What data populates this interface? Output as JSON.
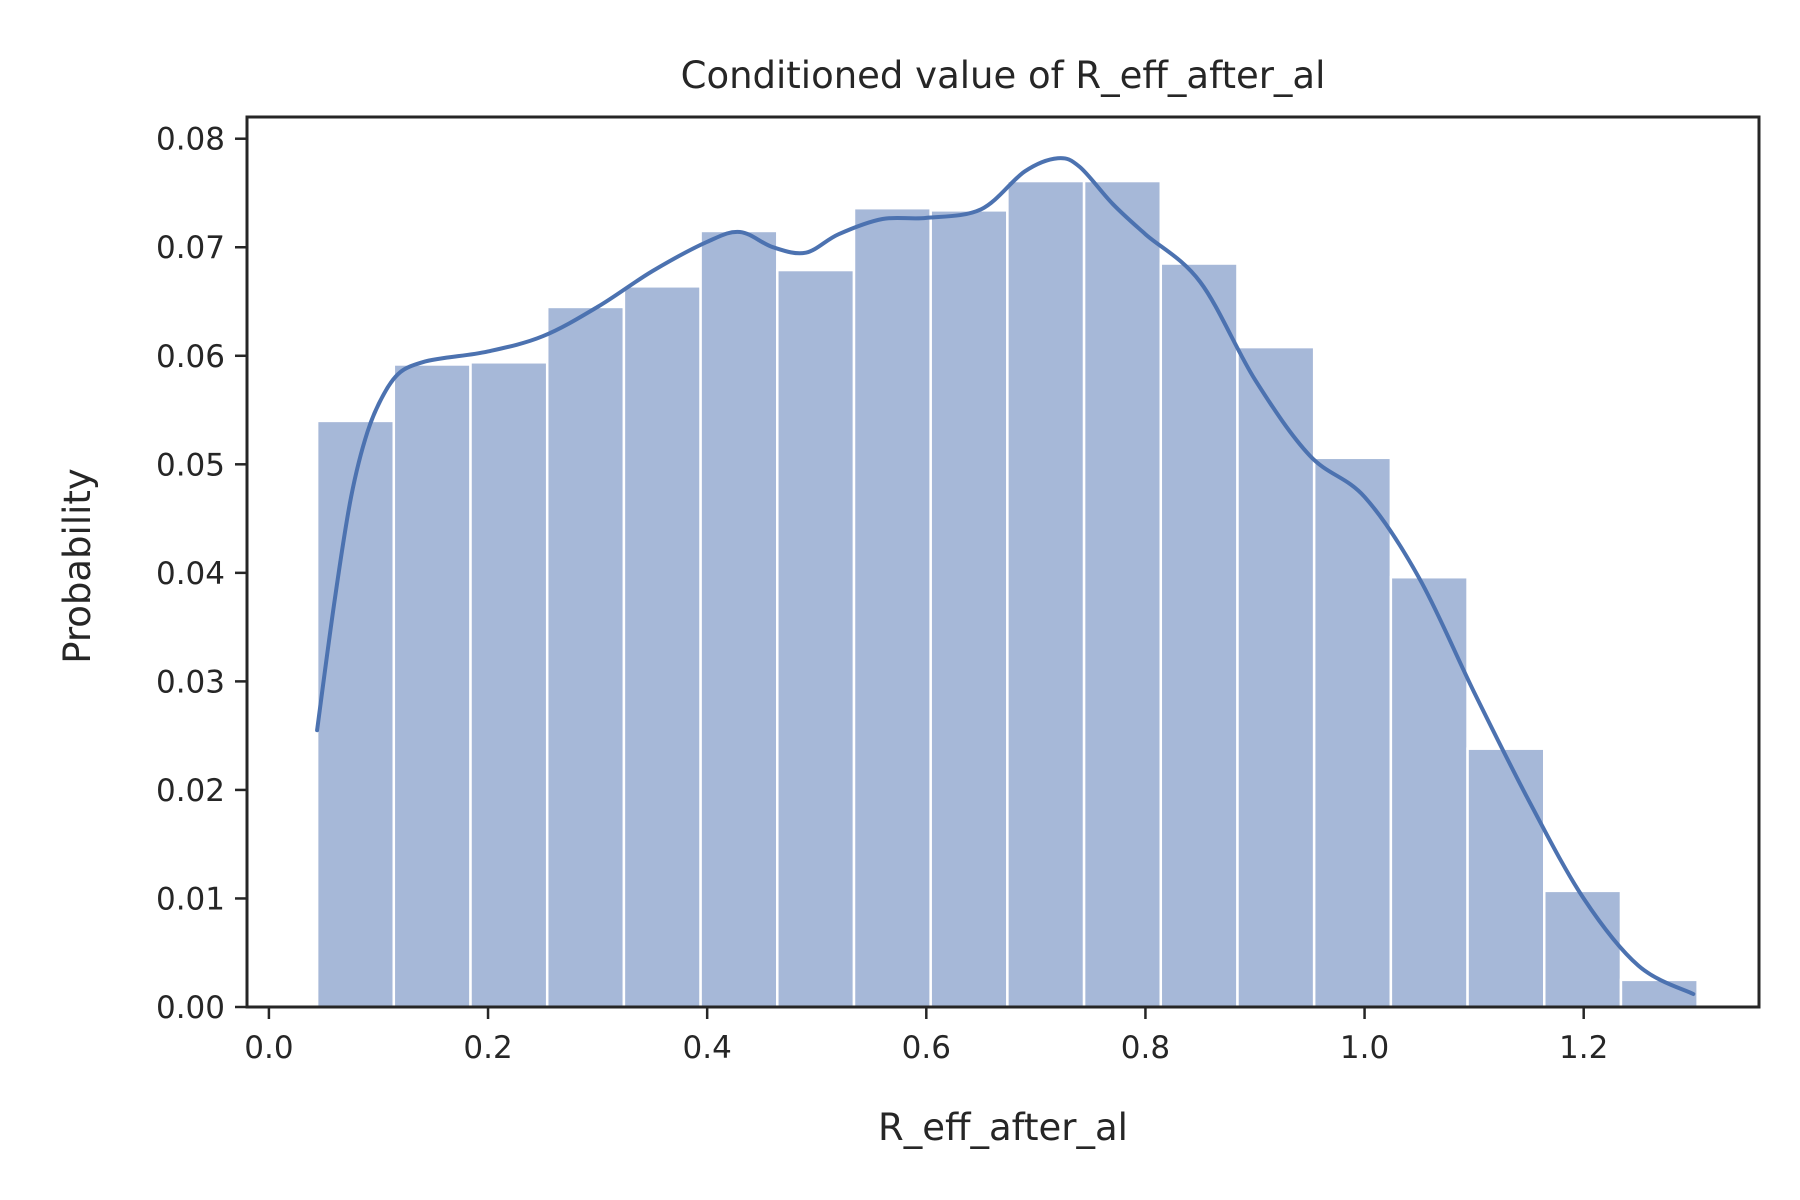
{
  "chart_data": {
    "type": "bar",
    "title": "Conditioned value of R_eff_after_al",
    "xlabel": "R_eff_after_al",
    "ylabel": "Probability",
    "xlim": [
      -0.02,
      1.36
    ],
    "ylim": [
      0.0,
      0.082
    ],
    "xticks": [
      0.0,
      0.2,
      0.4,
      0.6,
      0.8,
      1.0,
      1.2
    ],
    "xtick_labels": [
      "0.0",
      "0.2",
      "0.4",
      "0.6",
      "0.8",
      "1.0",
      "1.2"
    ],
    "yticks": [
      0.0,
      0.01,
      0.02,
      0.03,
      0.04,
      0.05,
      0.06,
      0.07,
      0.08
    ],
    "ytick_labels": [
      "0.00",
      "0.01",
      "0.02",
      "0.03",
      "0.04",
      "0.05",
      "0.06",
      "0.07",
      "0.08"
    ],
    "grid": false,
    "bar_color": "#a6b8d8",
    "kde_color": "#4c72b0",
    "bins": [
      {
        "x0": 0.044,
        "x1": 0.114,
        "value": 0.054
      },
      {
        "x0": 0.114,
        "x1": 0.184,
        "value": 0.0592
      },
      {
        "x0": 0.184,
        "x1": 0.254,
        "value": 0.0594
      },
      {
        "x0": 0.254,
        "x1": 0.324,
        "value": 0.0645
      },
      {
        "x0": 0.324,
        "x1": 0.394,
        "value": 0.0664
      },
      {
        "x0": 0.394,
        "x1": 0.464,
        "value": 0.0715
      },
      {
        "x0": 0.464,
        "x1": 0.534,
        "value": 0.0679
      },
      {
        "x0": 0.534,
        "x1": 0.604,
        "value": 0.0736
      },
      {
        "x0": 0.604,
        "x1": 0.674,
        "value": 0.0734
      },
      {
        "x0": 0.674,
        "x1": 0.744,
        "value": 0.0761
      },
      {
        "x0": 0.744,
        "x1": 0.814,
        "value": 0.0761
      },
      {
        "x0": 0.814,
        "x1": 0.884,
        "value": 0.0685
      },
      {
        "x0": 0.884,
        "x1": 0.954,
        "value": 0.0608
      },
      {
        "x0": 0.954,
        "x1": 1.024,
        "value": 0.0506
      },
      {
        "x0": 1.024,
        "x1": 1.094,
        "value": 0.0396
      },
      {
        "x0": 1.094,
        "x1": 1.164,
        "value": 0.0238
      },
      {
        "x0": 1.164,
        "x1": 1.234,
        "value": 0.0107
      },
      {
        "x0": 1.234,
        "x1": 1.304,
        "value": 0.0025
      }
    ],
    "kde": {
      "x": [
        0.044,
        0.06,
        0.075,
        0.09,
        0.105,
        0.12,
        0.14,
        0.16,
        0.2,
        0.25,
        0.3,
        0.35,
        0.4,
        0.43,
        0.46,
        0.49,
        0.52,
        0.56,
        0.6,
        0.65,
        0.69,
        0.72,
        0.74,
        0.77,
        0.8,
        0.85,
        0.9,
        0.95,
        1.0,
        1.05,
        1.1,
        1.15,
        1.2,
        1.25,
        1.3
      ],
      "y": [
        0.0255,
        0.0375,
        0.047,
        0.053,
        0.0565,
        0.0585,
        0.0594,
        0.0598,
        0.0604,
        0.0618,
        0.0645,
        0.0678,
        0.0705,
        0.0714,
        0.07,
        0.0695,
        0.0712,
        0.0726,
        0.0727,
        0.0735,
        0.077,
        0.0782,
        0.0774,
        0.074,
        0.0712,
        0.0668,
        0.0578,
        0.0508,
        0.047,
        0.0395,
        0.029,
        0.019,
        0.01,
        0.0038,
        0.0012
      ]
    }
  }
}
